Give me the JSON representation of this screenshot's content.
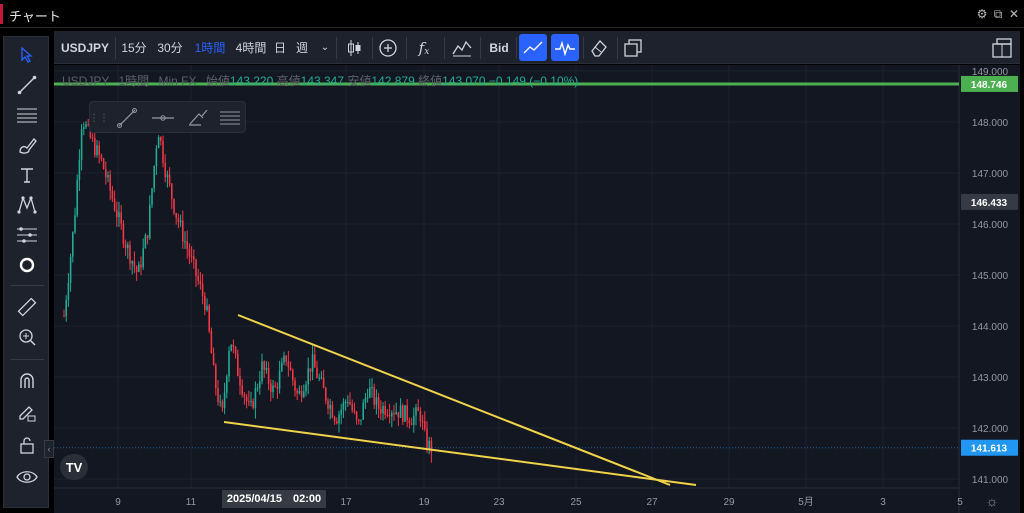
{
  "window": {
    "title": "チャート"
  },
  "toolbar": {
    "symbol": "USDJPY",
    "intervals": [
      "15分",
      "30分",
      "1時間",
      "4時間",
      "日",
      "週"
    ],
    "active_interval": "1時間",
    "bid_label": "Bid"
  },
  "legend": {
    "symbol": "USDJPY",
    "interval": "1時間",
    "source": "Min FX",
    "open_label": "始値",
    "open": "143.220",
    "high_label": "高値",
    "high": "143.347",
    "low_label": "安値",
    "low": "142.879",
    "close_label": "終値",
    "close": "143.070",
    "change": "−0.149",
    "change_pct": "(−0.10%)"
  },
  "price_axis": {
    "ticks": [
      "149.000",
      "148.000",
      "147.000",
      "146.000",
      "145.000",
      "144.000",
      "143.000",
      "142.000",
      "141.000"
    ],
    "badges": [
      {
        "value": "148.746",
        "color": "#4caf50"
      },
      {
        "value": "146.433",
        "color": "#363a45"
      },
      {
        "value": "141.613",
        "color": "#2196f3"
      }
    ]
  },
  "time_axis": {
    "ticks": [
      "9",
      "11",
      "17",
      "19",
      "23",
      "25",
      "27",
      "29",
      "5月",
      "3",
      "5"
    ],
    "crosshair_label": "2025/04/15　02:00"
  },
  "colors": {
    "up": "#22ab94",
    "down": "#f23645",
    "trendline": "#f0d34a",
    "alert": "#4caf50",
    "accent": "#2962ff"
  },
  "icons": [
    "cursor-icon",
    "trendline-icon",
    "fib-icon",
    "brush-icon",
    "text-icon",
    "pattern-icon",
    "prediction-icon",
    "circle-icon",
    "ruler-icon",
    "zoom-icon",
    "magnet-icon",
    "lock-pencil-icon",
    "unlock-icon",
    "eye-icon"
  ]
}
